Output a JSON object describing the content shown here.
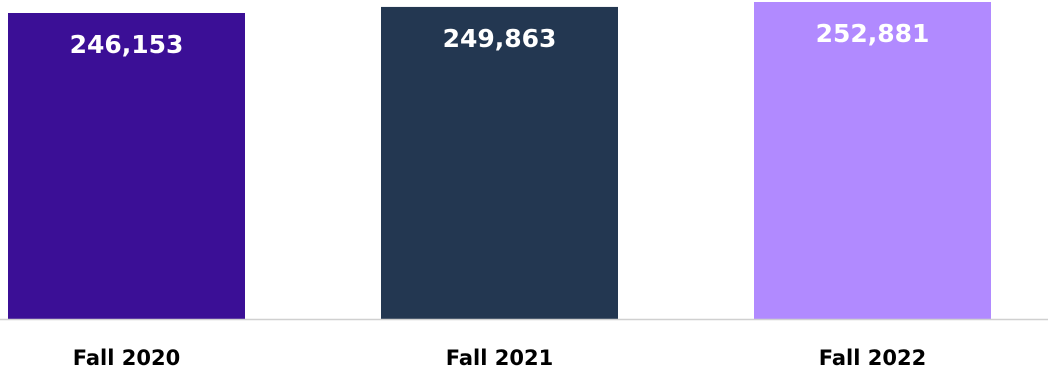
{
  "chart_data": {
    "type": "bar",
    "title": "",
    "xlabel": "",
    "ylabel": "",
    "categories": [
      "Fall 2020",
      "Fall 2021",
      "Fall 2022"
    ],
    "values": [
      246153,
      249863,
      252881
    ],
    "value_labels": [
      "246,153",
      "249,863",
      "252,881"
    ],
    "colors": [
      "#3b0f96",
      "#233751",
      "#b18aff"
    ],
    "axis_color": "#d0d0d0",
    "grid": false,
    "legend": "none"
  }
}
